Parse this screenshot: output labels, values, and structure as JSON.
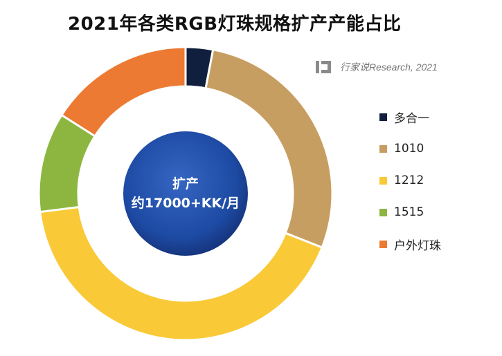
{
  "title": "2021年各类RGB灯珠规格扩产产能占比",
  "watermark": {
    "text": "行家说Research, 2021",
    "logo_icon": "hangjiashuo-logo-icon"
  },
  "center": {
    "line1": "扩产",
    "line2": "约17000+KK/月",
    "color": "#1d4aa3"
  },
  "chart_data": {
    "type": "pie",
    "donut": true,
    "title": "2021年各类RGB灯珠规格扩产产能占比",
    "legend_position": "right",
    "labels": [
      "多合一",
      "1010",
      "1212",
      "1515",
      "户外灯珠"
    ],
    "values": [
      3,
      28,
      42,
      11,
      16
    ],
    "colors": [
      "#0f1f3d",
      "#c79e61",
      "#f9c937",
      "#8db640",
      "#ec7a32"
    ]
  }
}
